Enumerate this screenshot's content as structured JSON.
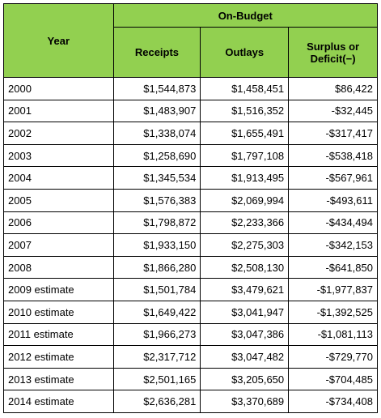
{
  "table": {
    "header": {
      "year": "Year",
      "group": "On-Budget",
      "columns": [
        "Receipts",
        "Outlays",
        "Surplus or Deficit(−)"
      ]
    },
    "rows": [
      [
        "2000",
        "$1,544,873",
        "$1,458,451",
        "$86,422"
      ],
      [
        "2001",
        "$1,483,907",
        "$1,516,352",
        "-$32,445"
      ],
      [
        "2002",
        "$1,338,074",
        "$1,655,491",
        "-$317,417"
      ],
      [
        "2003",
        "$1,258,690",
        "$1,797,108",
        "-$538,418"
      ],
      [
        "2004",
        "$1,345,534",
        "$1,913,495",
        "-$567,961"
      ],
      [
        "2005",
        "$1,576,383",
        "$2,069,994",
        "-$493,611"
      ],
      [
        "2006",
        "$1,798,872",
        "$2,233,366",
        "-$434,494"
      ],
      [
        "2007",
        "$1,933,150",
        "$2,275,303",
        "-$342,153"
      ],
      [
        "2008",
        "$1,866,280",
        "$2,508,130",
        "-$641,850"
      ],
      [
        "2009 estimate",
        "$1,501,784",
        "$3,479,621",
        "-$1,977,837"
      ],
      [
        "2010 estimate",
        "$1,649,422",
        "$3,041,947",
        "-$1,392,525"
      ],
      [
        "2011 estimate",
        "$1,966,273",
        "$3,047,386",
        "-$1,081,113"
      ],
      [
        "2012 estimate",
        "$2,317,712",
        "$3,047,482",
        "-$729,770"
      ],
      [
        "2013 estimate",
        "$2,501,165",
        "$3,205,650",
        "-$704,485"
      ],
      [
        "2014 estimate",
        "$2,636,281",
        "$3,370,689",
        "-$734,408"
      ]
    ]
  }
}
